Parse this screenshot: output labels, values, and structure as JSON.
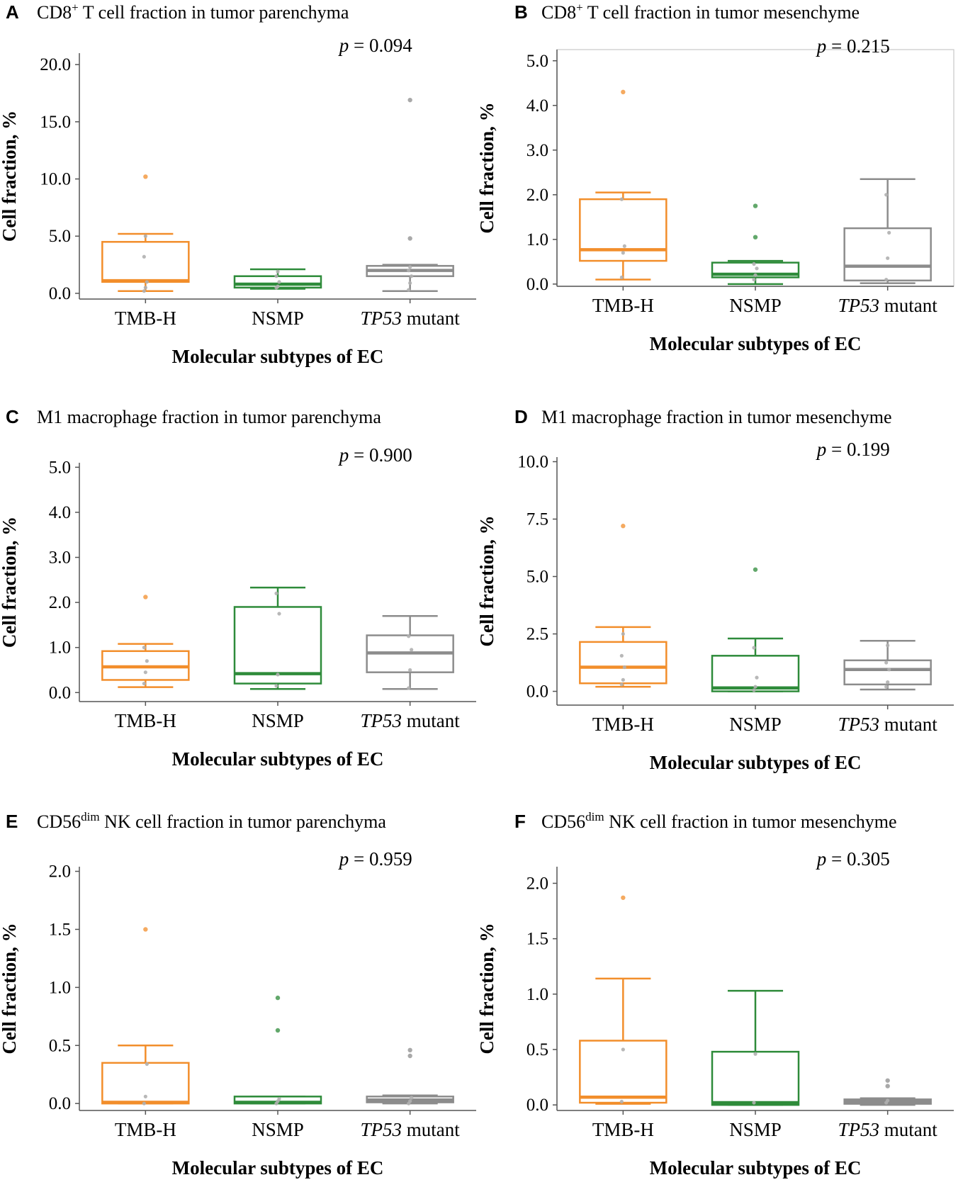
{
  "colors": {
    "TMB-H": "#F28E2B",
    "NSMP": "#2E8B3A",
    "TP53 mutant": "#8C8C8C",
    "axis": "#555555",
    "jitter": "#B0B0B0"
  },
  "chart_data": [
    {
      "type": "box",
      "letter": "A",
      "title_pre": "CD8",
      "title_sup": "+",
      "title_post": " T cell fraction in tumor parenchyma",
      "p_label": "p",
      "p_value": " = 0.094",
      "xlabel": "Molecular subtypes of EC",
      "ylabel": "Cell fraction, %",
      "ylim": [
        -0.5,
        21.0
      ],
      "yticks": [
        0,
        5,
        10,
        15,
        20
      ],
      "ytick_labels": [
        "0.0",
        "5.0",
        "10.0",
        "15.0",
        "20.0"
      ],
      "categories": [
        "TMB-H",
        "NSMP",
        "TP53 mutant"
      ],
      "category_italic": [
        "",
        "",
        "TP53"
      ],
      "category_rest": [
        "TMB-H",
        "NSMP",
        " mutant"
      ],
      "boxes": [
        {
          "q1": 1.0,
          "median": 1.1,
          "q3": 4.5,
          "wlo": 0.2,
          "whi": 5.2,
          "outliers": [
            10.2
          ],
          "points": [
            0.2,
            0.5,
            1.0,
            3.2,
            5.0,
            10.2
          ]
        },
        {
          "q1": 0.5,
          "median": 0.8,
          "q3": 1.5,
          "wlo": 0.4,
          "whi": 2.1,
          "outliers": [],
          "points": [
            0.5,
            0.6,
            1.0,
            1.5,
            1.9
          ]
        },
        {
          "q1": 1.5,
          "median": 2.0,
          "q3": 2.4,
          "wlo": 0.2,
          "whi": 2.5,
          "outliers": [
            4.8,
            16.9
          ],
          "points": [
            0.3,
            0.9,
            1.5,
            2.0,
            2.3,
            4.8,
            16.9
          ]
        }
      ]
    },
    {
      "type": "box",
      "letter": "B",
      "title_pre": "CD8",
      "title_sup": "+",
      "title_post": " T cell fraction in tumor mesenchyme",
      "p_label": "p",
      "p_value": " = 0.215",
      "xlabel": "Molecular subtypes of EC",
      "ylabel": "Cell fraction, %",
      "ylim": [
        -0.05,
        5.25
      ],
      "yticks": [
        0,
        1,
        2,
        3,
        4,
        5
      ],
      "ytick_labels": [
        "0.0",
        "1.0",
        "2.0",
        "3.0",
        "4.0",
        "5.0"
      ],
      "categories": [
        "TMB-H",
        "NSMP",
        "TP53 mutant"
      ],
      "category_italic": [
        "",
        "",
        "TP53"
      ],
      "category_rest": [
        "TMB-H",
        "NSMP",
        " mutant"
      ],
      "boxes": [
        {
          "q1": 0.52,
          "median": 0.77,
          "q3": 1.9,
          "wlo": 0.1,
          "whi": 2.05,
          "outliers": [
            4.3
          ],
          "points": [
            0.15,
            0.7,
            0.85,
            1.9,
            4.3
          ]
        },
        {
          "q1": 0.15,
          "median": 0.22,
          "q3": 0.48,
          "wlo": 0.0,
          "whi": 0.52,
          "outliers": [
            1.05,
            1.75
          ],
          "points": [
            0.1,
            0.2,
            0.35,
            0.45,
            1.05,
            1.75
          ]
        },
        {
          "q1": 0.08,
          "median": 0.4,
          "q3": 1.25,
          "wlo": 0.02,
          "whi": 2.35,
          "outliers": [],
          "points": [
            0.1,
            0.58,
            1.15,
            2.0
          ]
        }
      ]
    },
    {
      "type": "box",
      "letter": "C",
      "title_pre": "M1 macrophage fraction in tumor parenchyma",
      "title_sup": "",
      "title_post": "",
      "p_label": "p",
      "p_value": " = 0.900",
      "xlabel": "Molecular subtypes of EC",
      "ylabel": "Cell fraction, %",
      "ylim": [
        -0.2,
        5.1
      ],
      "yticks": [
        0,
        1,
        2,
        3,
        4,
        5
      ],
      "ytick_labels": [
        "0.0",
        "1.0",
        "2.0",
        "3.0",
        "4.0",
        "5.0"
      ],
      "categories": [
        "TMB-H",
        "NSMP",
        "TP53 mutant"
      ],
      "category_italic": [
        "",
        "",
        "TP53"
      ],
      "category_rest": [
        "TMB-H",
        "NSMP",
        " mutant"
      ],
      "boxes": [
        {
          "q1": 0.28,
          "median": 0.57,
          "q3": 0.92,
          "wlo": 0.12,
          "whi": 1.08,
          "outliers": [
            2.12
          ],
          "points": [
            0.2,
            0.45,
            0.7,
            1.0,
            2.12
          ]
        },
        {
          "q1": 0.2,
          "median": 0.42,
          "q3": 1.9,
          "wlo": 0.08,
          "whi": 2.33,
          "outliers": [],
          "points": [
            0.15,
            0.4,
            1.75,
            2.2
          ]
        },
        {
          "q1": 0.45,
          "median": 0.88,
          "q3": 1.27,
          "wlo": 0.08,
          "whi": 1.7,
          "outliers": [],
          "points": [
            0.1,
            0.5,
            0.95,
            1.25
          ]
        }
      ]
    },
    {
      "type": "box",
      "letter": "D",
      "title_pre": "M1 macrophage fraction in tumor mesenchyme",
      "title_sup": "",
      "title_post": "",
      "p_label": "p",
      "p_value": " = 0.199",
      "xlabel": "Molecular subtypes of EC",
      "ylabel": "Cell fraction, %",
      "ylim": [
        -0.6,
        10.2
      ],
      "yticks": [
        0,
        2.5,
        5,
        7.5,
        10
      ],
      "ytick_labels": [
        "0.0",
        "2.5",
        "5.0",
        "7.5",
        "10.0"
      ],
      "categories": [
        "TMB-H",
        "NSMP",
        "TP53 mutant"
      ],
      "category_italic": [
        "",
        "",
        "TP53"
      ],
      "category_rest": [
        "TMB-H",
        "NSMP",
        " mutant"
      ],
      "boxes": [
        {
          "q1": 0.35,
          "median": 1.05,
          "q3": 2.15,
          "wlo": 0.2,
          "whi": 2.8,
          "outliers": [
            7.2
          ],
          "points": [
            0.3,
            0.5,
            1.05,
            1.55,
            2.5,
            7.2
          ]
        },
        {
          "q1": 0.0,
          "median": 0.15,
          "q3": 1.55,
          "wlo": 0.0,
          "whi": 2.3,
          "outliers": [
            5.3
          ],
          "points": [
            0.05,
            0.2,
            0.6,
            1.9,
            5.3
          ]
        },
        {
          "q1": 0.3,
          "median": 0.95,
          "q3": 1.35,
          "wlo": 0.08,
          "whi": 2.2,
          "outliers": [],
          "points": [
            0.2,
            0.4,
            0.95,
            1.25,
            2.0
          ]
        }
      ]
    },
    {
      "type": "box",
      "letter": "E",
      "title_pre": "CD56",
      "title_sup": "dim",
      "title_post": " NK cell fraction in tumor parenchyma",
      "p_label": "p",
      "p_value": " = 0.959",
      "xlabel": "Molecular subtypes of EC",
      "ylabel": "Cell fraction, %",
      "ylim": [
        -0.06,
        2.04
      ],
      "yticks": [
        0,
        0.5,
        1,
        1.5,
        2
      ],
      "ytick_labels": [
        "0.0",
        "0.5",
        "1.0",
        "1.5",
        "2.0"
      ],
      "categories": [
        "TMB-H",
        "NSMP",
        "TP53 mutant"
      ],
      "category_italic": [
        "",
        "",
        "TP53"
      ],
      "category_rest": [
        "TMB-H",
        "NSMP",
        " mutant"
      ],
      "boxes": [
        {
          "q1": 0.0,
          "median": 0.01,
          "q3": 0.35,
          "wlo": 0.0,
          "whi": 0.5,
          "outliers": [
            1.5
          ],
          "points": [
            0.0,
            0.06,
            0.34,
            1.5
          ]
        },
        {
          "q1": 0.0,
          "median": 0.01,
          "q3": 0.06,
          "wlo": 0.0,
          "whi": 0.06,
          "outliers": [
            0.63,
            0.91
          ],
          "points": [
            0.0,
            0.02,
            0.04,
            0.63,
            0.91
          ]
        },
        {
          "q1": 0.01,
          "median": 0.03,
          "q3": 0.06,
          "wlo": 0.0,
          "whi": 0.07,
          "outliers": [
            0.41,
            0.46
          ],
          "points": [
            0.0,
            0.02,
            0.05,
            0.41,
            0.46
          ]
        }
      ]
    },
    {
      "type": "box",
      "letter": "F",
      "title_pre": "CD56",
      "title_sup": "dim",
      "title_post": " NK cell fraction in tumor mesenchyme",
      "p_label": "p",
      "p_value": " = 0.305",
      "xlabel": "Molecular subtypes of EC",
      "ylabel": "Cell fraction, %",
      "ylim": [
        -0.05,
        2.15
      ],
      "yticks": [
        0,
        0.5,
        1,
        1.5,
        2
      ],
      "ytick_labels": [
        "0.0",
        "0.5",
        "1.0",
        "1.5",
        "2.0"
      ],
      "categories": [
        "TMB-H",
        "NSMP",
        "TP53 mutant"
      ],
      "category_italic": [
        "",
        "",
        "TP53"
      ],
      "category_rest": [
        "TMB-H",
        "NSMP",
        " mutant"
      ],
      "boxes": [
        {
          "q1": 0.02,
          "median": 0.07,
          "q3": 0.58,
          "wlo": 0.01,
          "whi": 1.14,
          "outliers": [
            1.87
          ],
          "points": [
            0.03,
            0.5,
            1.87
          ]
        },
        {
          "q1": 0.0,
          "median": 0.02,
          "q3": 0.48,
          "wlo": 0.0,
          "whi": 1.03,
          "outliers": [],
          "points": [
            0.02,
            0.46
          ]
        },
        {
          "q1": 0.01,
          "median": 0.03,
          "q3": 0.05,
          "wlo": 0.0,
          "whi": 0.06,
          "outliers": [
            0.17,
            0.22
          ],
          "points": [
            0.02,
            0.04,
            0.17,
            0.22
          ]
        }
      ]
    }
  ]
}
